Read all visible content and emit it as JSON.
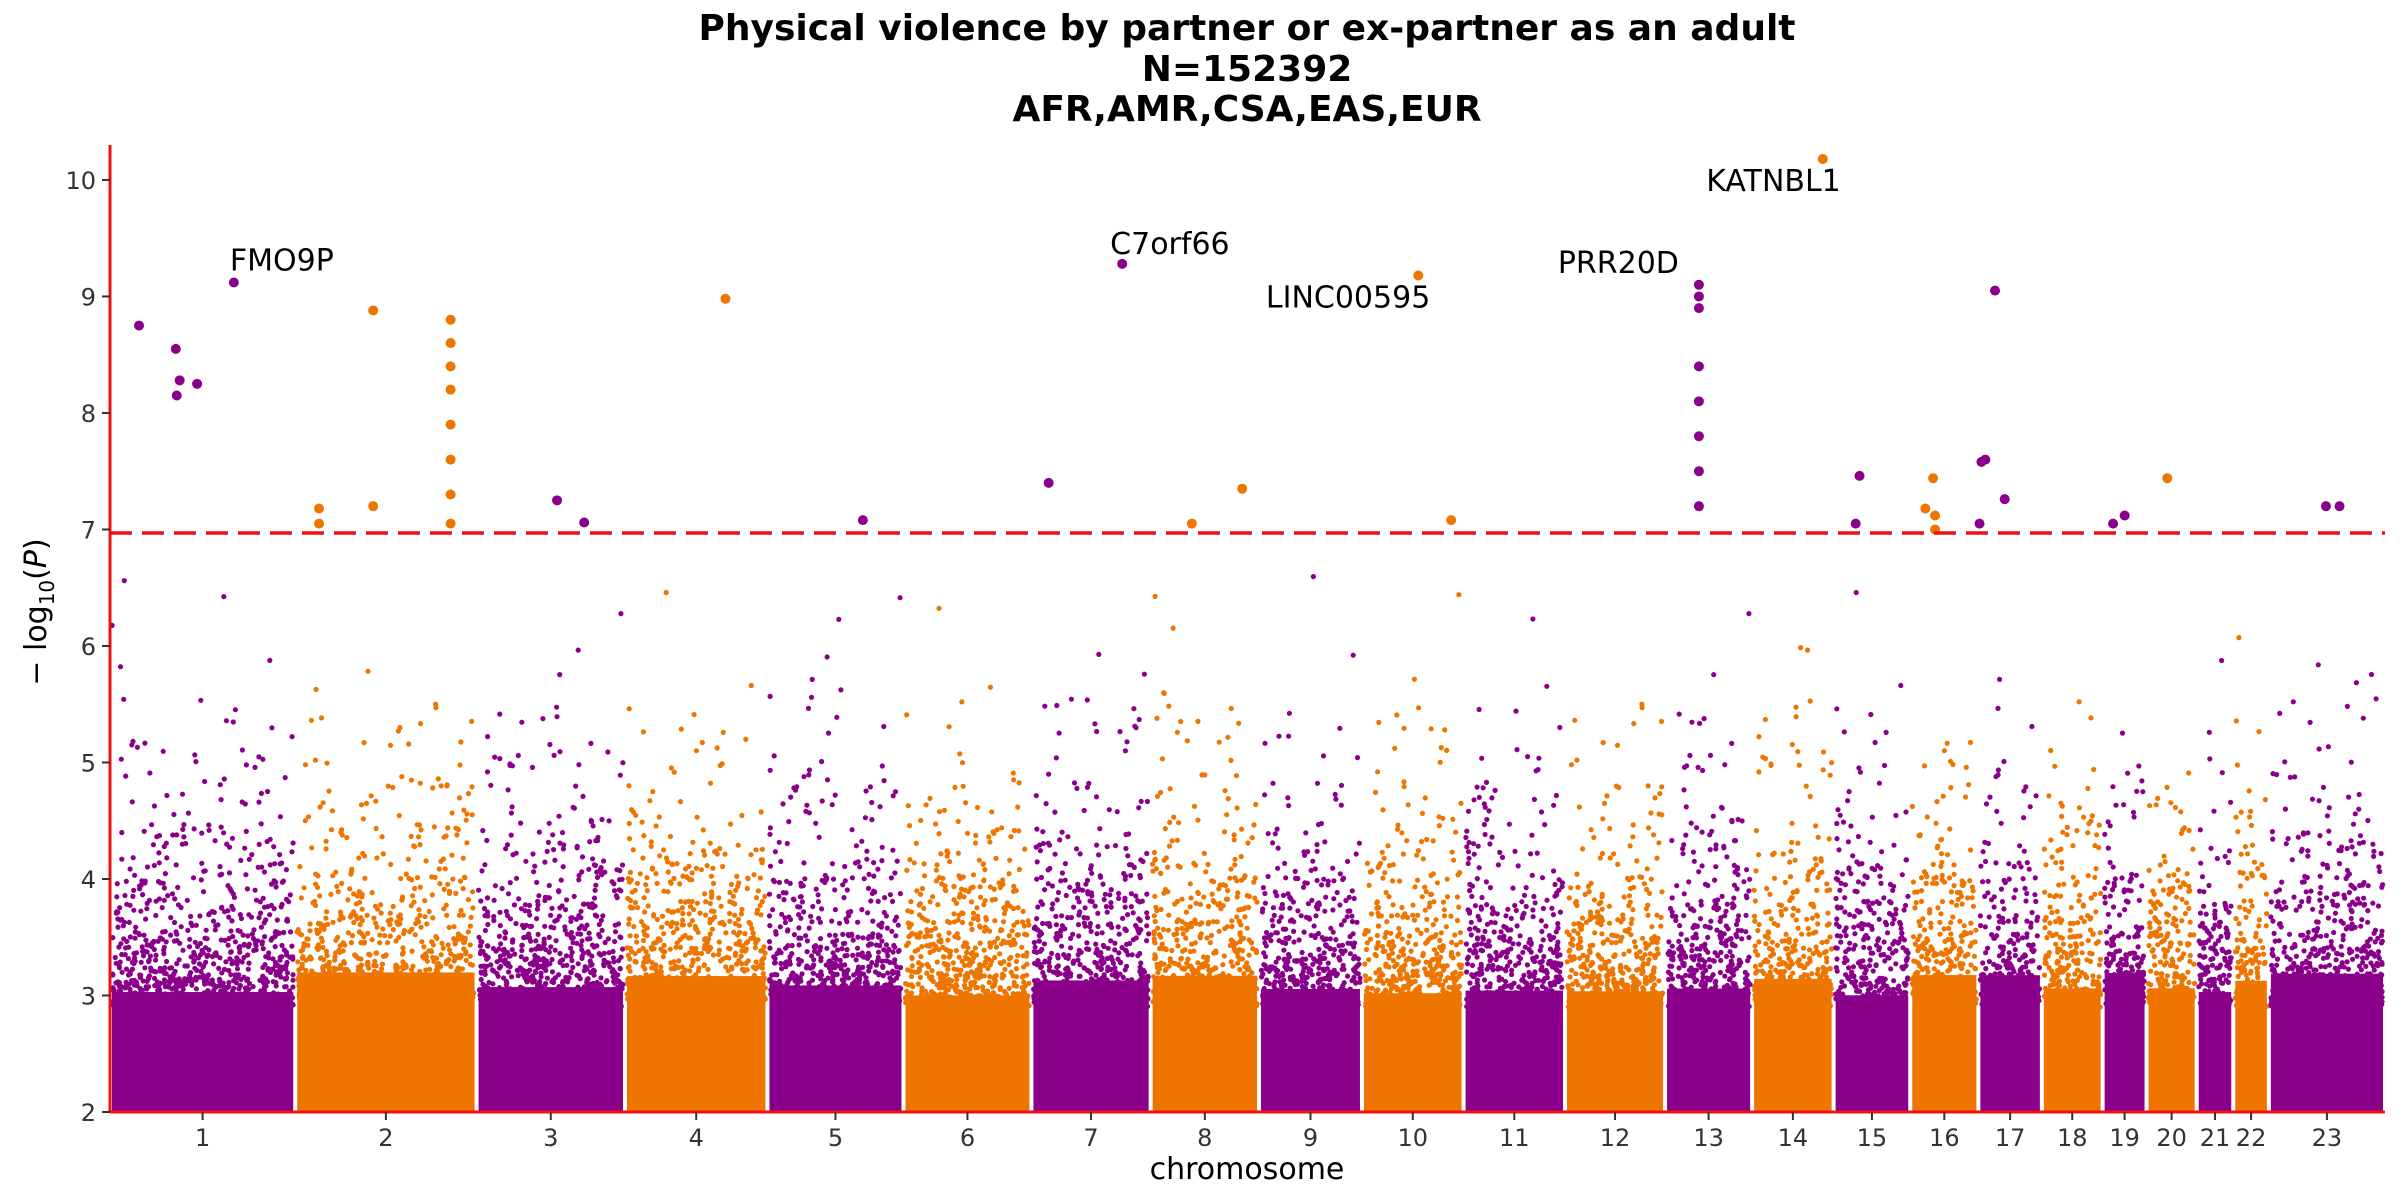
{
  "chart_data": {
    "type": "scatter",
    "title_lines": [
      "Physical violence by partner or ex-partner as an adult",
      "N=152392",
      "AFR,AMR,CSA,EAS,EUR"
    ],
    "xlabel": "chromosome",
    "ylabel": "−log10(P)",
    "ylim": [
      2,
      10.3
    ],
    "yticks": [
      "2",
      "3",
      "4",
      "5",
      "6",
      "7",
      "8",
      "9",
      "10"
    ],
    "threshold": 6.97,
    "colors": {
      "odd": "#8B008B",
      "even": "#EE7600",
      "threshold": "#EE1111",
      "axis": "#EE1111"
    },
    "chromosomes": [
      {
        "label": "1",
        "start": 0,
        "width": 95.7,
        "color": "odd",
        "max_y": 6.8
      },
      {
        "label": "2",
        "start": 95.7,
        "width": 93.7,
        "color": "even",
        "max_y": 6.6
      },
      {
        "label": "3",
        "start": 189.4,
        "width": 76.7,
        "color": "odd",
        "max_y": 6.5
      },
      {
        "label": "4",
        "start": 266.1,
        "width": 73.6,
        "color": "even",
        "max_y": 6.5
      },
      {
        "label": "5",
        "start": 339.7,
        "width": 70.3,
        "color": "odd",
        "max_y": 6.8
      },
      {
        "label": "6",
        "start": 410,
        "width": 66.1,
        "color": "even",
        "max_y": 6.7
      },
      {
        "label": "7",
        "start": 476.1,
        "width": 61.6,
        "color": "odd",
        "max_y": 6.8
      },
      {
        "label": "8",
        "start": 537.7,
        "width": 56.0,
        "color": "even",
        "max_y": 6.5
      },
      {
        "label": "9",
        "start": 593.7,
        "width": 53.2,
        "color": "odd",
        "max_y": 6.9
      },
      {
        "label": "10",
        "start": 646.9,
        "width": 52.5,
        "color": "even",
        "max_y": 6.5
      },
      {
        "label": "11",
        "start": 699.4,
        "width": 52.4,
        "color": "odd",
        "max_y": 6.6
      },
      {
        "label": "12",
        "start": 751.8,
        "width": 51.7,
        "color": "even",
        "max_y": 6.9
      },
      {
        "label": "13",
        "start": 803.5,
        "width": 45.0,
        "color": "odd",
        "max_y": 6.6
      },
      {
        "label": "14",
        "start": 848.5,
        "width": 42.1,
        "color": "even",
        "max_y": 6.9
      },
      {
        "label": "15",
        "start": 890.6,
        "width": 39.6,
        "color": "odd",
        "max_y": 6.7
      },
      {
        "label": "16",
        "start": 930.2,
        "width": 35.2,
        "color": "even",
        "max_y": 6.5
      },
      {
        "label": "17",
        "start": 965.4,
        "width": 32.8,
        "color": "odd",
        "max_y": 6.6
      },
      {
        "label": "18",
        "start": 998.2,
        "width": 31.4,
        "color": "even",
        "max_y": 6.8
      },
      {
        "label": "19",
        "start": 1029.6,
        "width": 22.7,
        "color": "odd",
        "max_y": 6.9
      },
      {
        "label": "20",
        "start": 1052.3,
        "width": 25.9,
        "color": "even",
        "max_y": 6.7
      },
      {
        "label": "21",
        "start": 1078.2,
        "width": 18.9,
        "color": "odd",
        "max_y": 6.2
      },
      {
        "label": "22",
        "start": 1097.1,
        "width": 18.4,
        "color": "even",
        "max_y": 6.1
      },
      {
        "label": "23",
        "start": 1115.5,
        "width": 60.0,
        "color": "odd",
        "max_y": 6.8
      }
    ],
    "significant_points": [
      {
        "chr": "1",
        "pos": 15,
        "y": 8.75
      },
      {
        "chr": "1",
        "pos": 34,
        "y": 8.55
      },
      {
        "chr": "1",
        "pos": 36,
        "y": 8.28
      },
      {
        "chr": "1",
        "pos": 34.5,
        "y": 8.15
      },
      {
        "chr": "1",
        "pos": 45,
        "y": 8.25
      },
      {
        "chr": "1",
        "pos": 64,
        "y": 9.12
      },
      {
        "chr": "2",
        "pos": 108,
        "y": 7.18
      },
      {
        "chr": "2",
        "pos": 108,
        "y": 7.05
      },
      {
        "chr": "2",
        "pos": 136,
        "y": 8.88
      },
      {
        "chr": "2",
        "pos": 136,
        "y": 7.2
      },
      {
        "chr": "2",
        "pos": 176,
        "y": 8.8
      },
      {
        "chr": "2",
        "pos": 176,
        "y": 8.6
      },
      {
        "chr": "2",
        "pos": 176,
        "y": 8.4
      },
      {
        "chr": "2",
        "pos": 176,
        "y": 8.2
      },
      {
        "chr": "2",
        "pos": 176,
        "y": 7.9
      },
      {
        "chr": "2",
        "pos": 176,
        "y": 7.6
      },
      {
        "chr": "2",
        "pos": 176,
        "y": 7.3
      },
      {
        "chr": "2",
        "pos": 176,
        "y": 7.05
      },
      {
        "chr": "3",
        "pos": 231,
        "y": 7.25
      },
      {
        "chr": "3",
        "pos": 245,
        "y": 7.06
      },
      {
        "chr": "4",
        "pos": 318,
        "y": 8.98
      },
      {
        "chr": "5",
        "pos": 389,
        "y": 7.08
      },
      {
        "chr": "7",
        "pos": 485,
        "y": 7.4
      },
      {
        "chr": "7",
        "pos": 523,
        "y": 9.28
      },
      {
        "chr": "8",
        "pos": 559,
        "y": 7.05
      },
      {
        "chr": "8",
        "pos": 585,
        "y": 7.35
      },
      {
        "chr": "10",
        "pos": 676,
        "y": 9.18
      },
      {
        "chr": "10",
        "pos": 693,
        "y": 7.08
      },
      {
        "chr": "13",
        "pos": 821,
        "y": 9.1
      },
      {
        "chr": "13",
        "pos": 821,
        "y": 9.0
      },
      {
        "chr": "13",
        "pos": 821,
        "y": 8.9
      },
      {
        "chr": "13",
        "pos": 821,
        "y": 8.4
      },
      {
        "chr": "13",
        "pos": 821,
        "y": 8.1
      },
      {
        "chr": "13",
        "pos": 821,
        "y": 7.8
      },
      {
        "chr": "13",
        "pos": 821,
        "y": 7.5
      },
      {
        "chr": "13",
        "pos": 821,
        "y": 7.2
      },
      {
        "chr": "14",
        "pos": 885,
        "y": 10.18
      },
      {
        "chr": "15",
        "pos": 904,
        "y": 7.46
      },
      {
        "chr": "15",
        "pos": 902,
        "y": 7.05
      },
      {
        "chr": "16",
        "pos": 938,
        "y": 7.18
      },
      {
        "chr": "16",
        "pos": 942,
        "y": 7.44
      },
      {
        "chr": "16",
        "pos": 943,
        "y": 7.12
      },
      {
        "chr": "16",
        "pos": 943,
        "y": 7.0
      },
      {
        "chr": "17",
        "pos": 967,
        "y": 7.58
      },
      {
        "chr": "17",
        "pos": 969,
        "y": 7.6
      },
      {
        "chr": "17",
        "pos": 966,
        "y": 7.05
      },
      {
        "chr": "17",
        "pos": 974,
        "y": 9.05
      },
      {
        "chr": "17",
        "pos": 979,
        "y": 7.26
      },
      {
        "chr": "19",
        "pos": 1035,
        "y": 7.05
      },
      {
        "chr": "19",
        "pos": 1041,
        "y": 7.12
      },
      {
        "chr": "20",
        "pos": 1063,
        "y": 7.44
      },
      {
        "chr": "23",
        "pos": 1145,
        "y": 7.2
      },
      {
        "chr": "23",
        "pos": 1152,
        "y": 7.2
      }
    ],
    "annotations": [
      {
        "label": "FMO9P",
        "pos": 64,
        "y": 9.12,
        "anchor": "start"
      },
      {
        "label": "C7orf66",
        "pos": 523,
        "y": 9.28,
        "anchor": "start"
      },
      {
        "label": "LINC00595",
        "pos": 676,
        "y": 9.18,
        "anchor": "end"
      },
      {
        "label": "PRR20D",
        "pos": 821,
        "y": 9.1,
        "anchor": "end"
      },
      {
        "label": "KATNBL1",
        "pos": 885,
        "y": 10.18,
        "anchor": "end"
      }
    ]
  }
}
